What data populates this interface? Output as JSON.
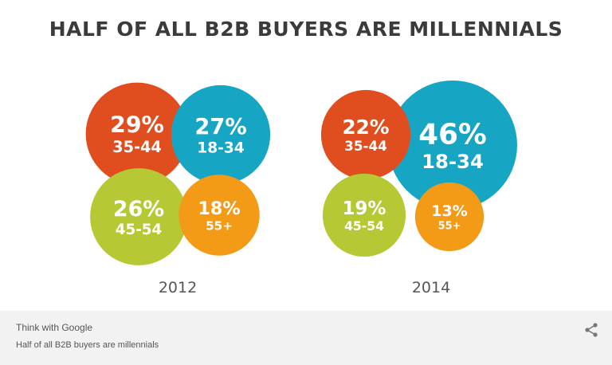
{
  "title": "HALF OF ALL B2B BUYERS ARE MILLENNIALS",
  "chart_data": [
    {
      "type": "bubble",
      "label": "2012",
      "series": [
        {
          "value": 29,
          "value_label": "29%",
          "category": "35-44",
          "color": "#e04e1f"
        },
        {
          "value": 27,
          "value_label": "27%",
          "category": "18-34",
          "color": "#16a6c4"
        },
        {
          "value": 26,
          "value_label": "26%",
          "category": "45-54",
          "color": "#b6c935"
        },
        {
          "value": 18,
          "value_label": "18%",
          "category": "55+",
          "color": "#f39a17"
        }
      ]
    },
    {
      "type": "bubble",
      "label": "2014",
      "series": [
        {
          "value": 46,
          "value_label": "46%",
          "category": "18-34",
          "color": "#16a6c4"
        },
        {
          "value": 22,
          "value_label": "22%",
          "category": "35-44",
          "color": "#e04e1f"
        },
        {
          "value": 19,
          "value_label": "19%",
          "category": "45-54",
          "color": "#b6c935"
        },
        {
          "value": 13,
          "value_label": "13%",
          "category": "55+",
          "color": "#f39a17"
        }
      ]
    }
  ],
  "footer": {
    "brand": "Think with Google",
    "caption": "Half of all B2B buyers are millennials",
    "share_icon": "share-icon"
  }
}
